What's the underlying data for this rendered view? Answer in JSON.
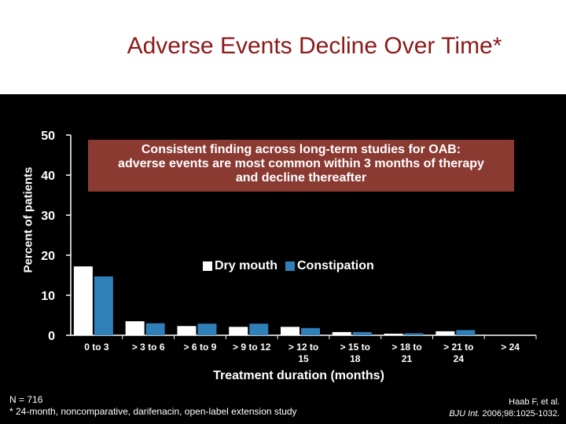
{
  "slide": {
    "title": "Adverse Events Decline Over Time*",
    "footnote_line1": "N = 716",
    "footnote_line2": "* 24-month, noncomparative, darifenacin, open-label extension study",
    "citation_line1": "Haab F, et al.",
    "citation_journal": "BJU Int.",
    "citation_rest": " 2006;98:1025-1032."
  },
  "callout": {
    "line1": "Consistent finding across long-term studies for OAB:",
    "line2": "adverse events are most common within 3 months of therapy",
    "line3": "and decline thereafter"
  },
  "chart_data": {
    "type": "bar",
    "title": "Adverse Events Decline Over Time*",
    "xlabel": "Treatment duration (months)",
    "ylabel": "Percent of patients",
    "ylim": [
      0,
      50
    ],
    "yticks": [
      0,
      10,
      20,
      30,
      40,
      50
    ],
    "grid": false,
    "legend_position": "center",
    "categories": [
      [
        "0 to 3"
      ],
      [
        "> 3 to 6"
      ],
      [
        "> 6 to 9"
      ],
      [
        "> 9 to 12"
      ],
      [
        "> 12 to",
        "15"
      ],
      [
        "> 15 to",
        "18"
      ],
      [
        "> 18 to",
        "21"
      ],
      [
        "> 21 to",
        "24"
      ],
      [
        "> 24"
      ]
    ],
    "series": [
      {
        "name": "Dry mouth",
        "color": "#ffffff",
        "values": [
          17.2,
          3.5,
          2.3,
          2.1,
          2.1,
          0.8,
          0.4,
          1.0,
          0
        ]
      },
      {
        "name": "Constipation",
        "color": "#2f7fb8",
        "values": [
          14.7,
          3.0,
          2.9,
          2.9,
          1.8,
          0.8,
          0.5,
          1.3,
          0
        ]
      }
    ]
  }
}
